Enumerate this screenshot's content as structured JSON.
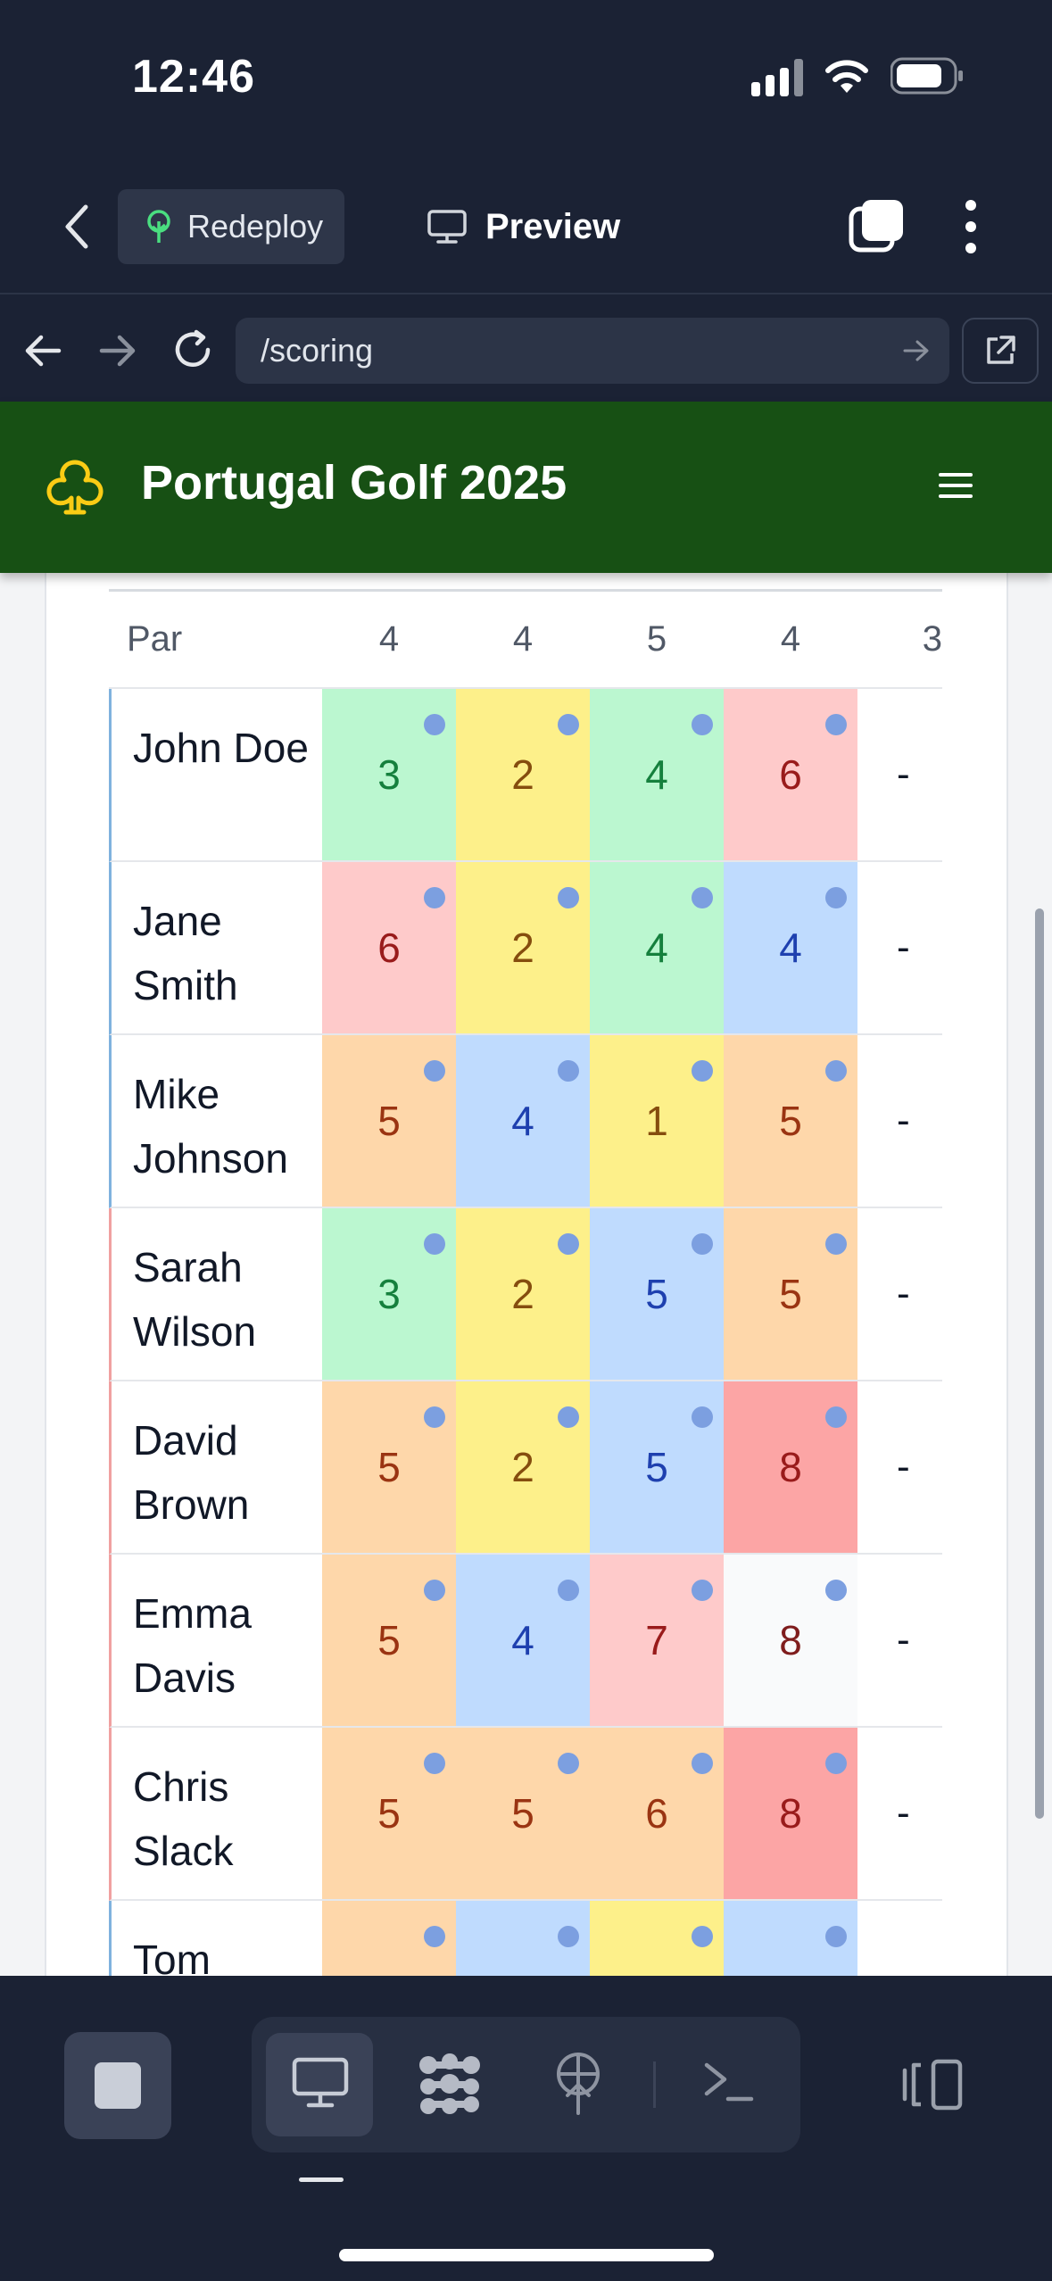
{
  "status": {
    "time": "12:46"
  },
  "toolbar": {
    "redeploy_label": "Redeploy",
    "preview_label": "Preview"
  },
  "browser": {
    "url": "/scoring"
  },
  "site": {
    "title": "Portugal Golf 2025"
  },
  "scorecard": {
    "par_label": "Par",
    "par": [
      "4",
      "4",
      "5",
      "4",
      "3"
    ],
    "players": [
      {
        "name": "John Doe",
        "scores": [
          "3",
          "2",
          "4",
          "6"
        ],
        "next": "-"
      },
      {
        "name": "Jane Smith",
        "scores": [
          "6",
          "2",
          "4",
          "4"
        ],
        "next": "-"
      },
      {
        "name": "Mike Johnson",
        "scores": [
          "5",
          "4",
          "1",
          "5"
        ],
        "next": "-"
      },
      {
        "name": "Sarah Wilson",
        "scores": [
          "3",
          "2",
          "5",
          "5"
        ],
        "next": "-"
      },
      {
        "name": "David Brown",
        "scores": [
          "5",
          "2",
          "5",
          "8"
        ],
        "next": "-"
      },
      {
        "name": "Emma Davis",
        "scores": [
          "5",
          "4",
          "7",
          "8"
        ],
        "next": "-"
      },
      {
        "name": "Chris Slack",
        "scores": [
          "5",
          "5",
          "6",
          "8"
        ],
        "next": "-"
      },
      {
        "name": "Tom",
        "scores": [
          "",
          "",
          "",
          ""
        ],
        "next": ""
      }
    ]
  },
  "colors": {
    "header_green": "#175014",
    "eagle_yellow": "#fdf08a",
    "birdie_green": "#bbf7d0",
    "par_blue": "#bfdbfe",
    "bogey_orange": "#fed7aa",
    "double_pink": "#fecaca",
    "triple_red": "#fca5a5",
    "neutral": "#f9fafb"
  }
}
